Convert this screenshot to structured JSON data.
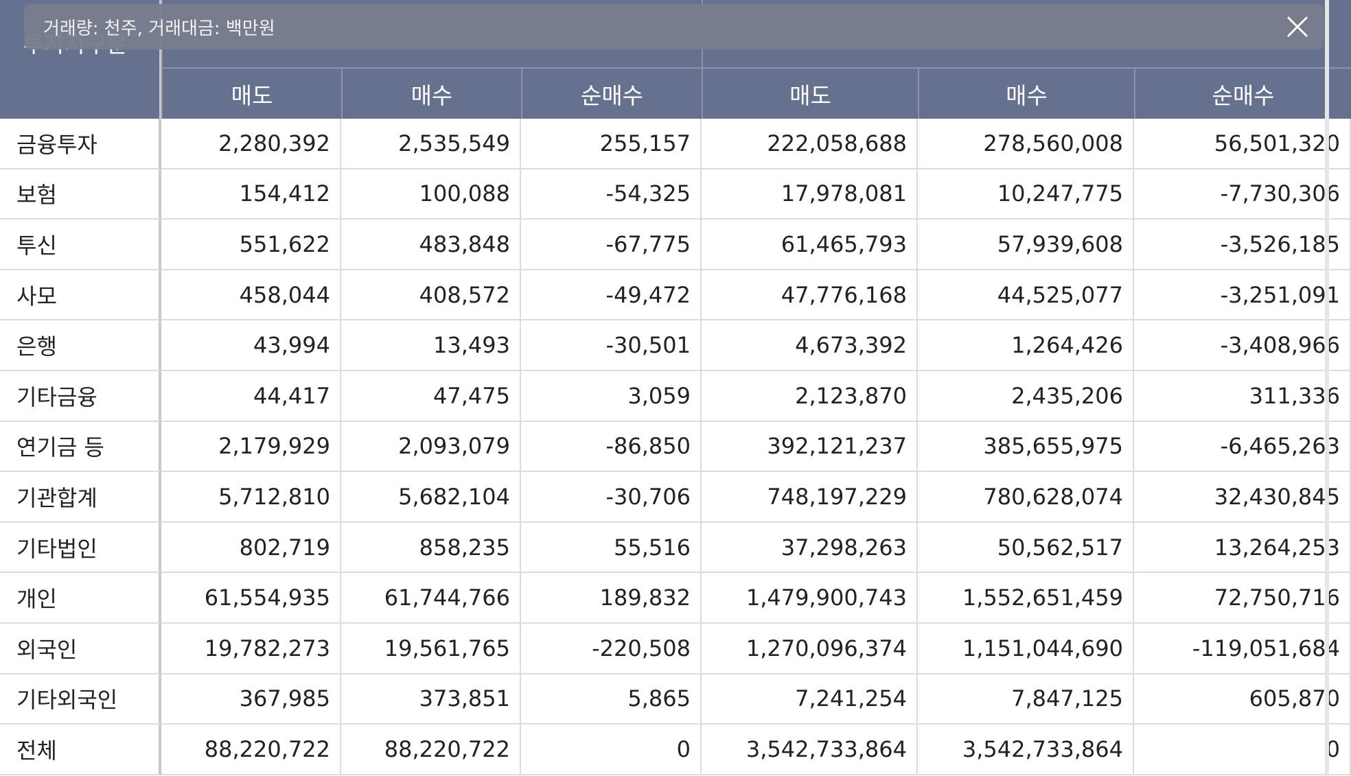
{
  "tooltip": {
    "text": "거래량: 천주, 거래대금: 백만원"
  },
  "header": {
    "title": "투자자구분",
    "columns": [
      "매도",
      "매수",
      "순매수",
      "매도",
      "매수",
      "순매수"
    ]
  },
  "rows": [
    {
      "label": "금융투자",
      "values": [
        "2,280,392",
        "2,535,549",
        "255,157",
        "222,058,688",
        "278,560,008",
        "56,501,320"
      ]
    },
    {
      "label": "보험",
      "values": [
        "154,412",
        "100,088",
        "-54,325",
        "17,978,081",
        "10,247,775",
        "-7,730,306"
      ]
    },
    {
      "label": "투신",
      "values": [
        "551,622",
        "483,848",
        "-67,775",
        "61,465,793",
        "57,939,608",
        "-3,526,185"
      ]
    },
    {
      "label": "사모",
      "values": [
        "458,044",
        "408,572",
        "-49,472",
        "47,776,168",
        "44,525,077",
        "-3,251,091"
      ]
    },
    {
      "label": "은행",
      "values": [
        "43,994",
        "13,493",
        "-30,501",
        "4,673,392",
        "1,264,426",
        "-3,408,966"
      ]
    },
    {
      "label": "기타금융",
      "values": [
        "44,417",
        "47,475",
        "3,059",
        "2,123,870",
        "2,435,206",
        "311,336"
      ]
    },
    {
      "label": "연기금 등",
      "values": [
        "2,179,929",
        "2,093,079",
        "-86,850",
        "392,121,237",
        "385,655,975",
        "-6,465,263"
      ]
    },
    {
      "label": "기관합계",
      "values": [
        "5,712,810",
        "5,682,104",
        "-30,706",
        "748,197,229",
        "780,628,074",
        "32,430,845"
      ]
    },
    {
      "label": "기타법인",
      "values": [
        "802,719",
        "858,235",
        "55,516",
        "37,298,263",
        "50,562,517",
        "13,264,253"
      ]
    },
    {
      "label": "개인",
      "values": [
        "61,554,935",
        "61,744,766",
        "189,832",
        "1,479,900,743",
        "1,552,651,459",
        "72,750,716"
      ]
    },
    {
      "label": "외국인",
      "values": [
        "19,782,273",
        "19,561,765",
        "-220,508",
        "1,270,096,374",
        "1,151,044,690",
        "-119,051,684"
      ]
    },
    {
      "label": "기타외국인",
      "values": [
        "367,985",
        "373,851",
        "5,865",
        "7,241,254",
        "7,847,125",
        "605,870"
      ]
    },
    {
      "label": "전체",
      "values": [
        "88,220,722",
        "88,220,722",
        "0",
        "3,542,733,864",
        "3,542,733,864",
        "0"
      ]
    }
  ]
}
